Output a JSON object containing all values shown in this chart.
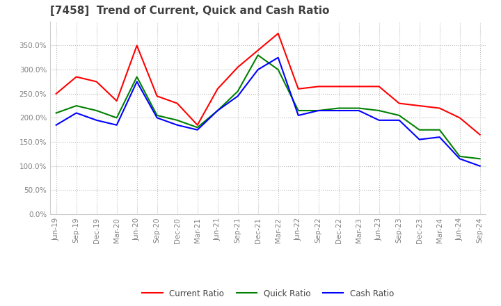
{
  "title": "[7458]  Trend of Current, Quick and Cash Ratio",
  "x_labels": [
    "Jun-19",
    "Sep-19",
    "Dec-19",
    "Mar-20",
    "Jun-20",
    "Sep-20",
    "Dec-20",
    "Mar-21",
    "Jun-21",
    "Sep-21",
    "Dec-21",
    "Mar-22",
    "Jun-22",
    "Sep-22",
    "Dec-22",
    "Mar-23",
    "Jun-23",
    "Sep-23",
    "Dec-23",
    "Mar-24",
    "Jun-24",
    "Sep-24"
  ],
  "current_ratio": [
    250,
    285,
    275,
    235,
    350,
    245,
    230,
    185,
    260,
    305,
    340,
    375,
    260,
    265,
    265,
    265,
    265,
    230,
    225,
    220,
    200,
    165
  ],
  "quick_ratio": [
    210,
    225,
    215,
    200,
    285,
    205,
    195,
    180,
    215,
    255,
    330,
    300,
    215,
    215,
    220,
    220,
    215,
    205,
    175,
    175,
    120,
    115
  ],
  "cash_ratio": [
    185,
    210,
    195,
    185,
    275,
    200,
    185,
    175,
    215,
    245,
    300,
    325,
    205,
    215,
    215,
    215,
    195,
    195,
    155,
    160,
    115,
    100
  ],
  "ylim": [
    0,
    400
  ],
  "yticks": [
    0,
    50,
    100,
    150,
    200,
    250,
    300,
    350
  ],
  "line_colors": {
    "current": "#FF0000",
    "quick": "#008000",
    "cash": "#0000FF"
  },
  "background_color": "#FFFFFF",
  "grid_color": "#BBBBBB",
  "title_color": "#404040",
  "tick_color": "#808080",
  "title_fontsize": 11,
  "tick_fontsize": 7.5,
  "legend_fontsize": 8.5
}
